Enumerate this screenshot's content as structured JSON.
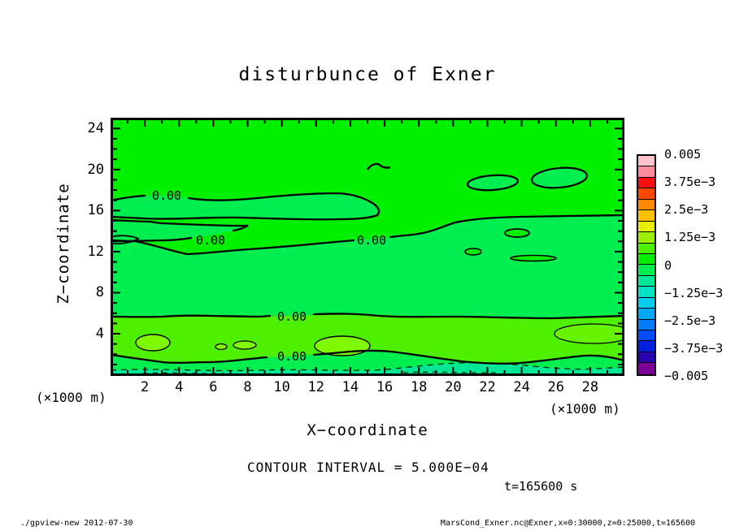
{
  "title": "disturbunce of Exner",
  "axes": {
    "x": {
      "label": "X−coordinate",
      "unit": "(×1000 m)",
      "ticks": [
        2,
        4,
        6,
        8,
        10,
        12,
        14,
        16,
        18,
        20,
        22,
        24,
        26,
        28
      ],
      "min": 0,
      "max": 30
    },
    "y": {
      "label": "Z−coordinate",
      "unit": "(×1000 m)",
      "ticks": [
        4,
        8,
        12,
        16,
        20,
        24
      ],
      "min": 0,
      "max": 25
    }
  },
  "plot": {
    "contour_labels": [
      "0.00",
      "0.00",
      "0.00",
      "0.00",
      "0.00"
    ],
    "colors": {
      "positive_low": "#00f000",
      "negative_low": "#00ee4f",
      "positive_mid": "#4ef000",
      "positive_high": "#80f800",
      "positive_high2": "#68f400",
      "negative_mid": "#00e795",
      "contour_line": "#000000"
    }
  },
  "colorbar": {
    "tick_labels": [
      "0.005",
      "3.75e−3",
      "2.5e−3",
      "1.25e−3",
      "0",
      "−1.25e−3",
      "−2.5e−3",
      "−3.75e−3",
      "−0.005"
    ],
    "colors": [
      "#ffc2ce",
      "#ff8a9a",
      "#ff1010",
      "#ff4800",
      "#ff8800",
      "#ffc000",
      "#e8f000",
      "#9cf000",
      "#4ef000",
      "#00f000",
      "#00ee4f",
      "#00e795",
      "#00e0c4",
      "#00ccec",
      "#00a8f4",
      "#007cfc",
      "#004cff",
      "#0020e0",
      "#2a00b0",
      "#7c0096"
    ]
  },
  "annotations": {
    "contour_interval": "CONTOUR INTERVAL = 5.000E−04",
    "time": "t=165600 s"
  },
  "footer": {
    "left": "./gpview-new  2012-07-30",
    "right": "MarsCond_Exner.nc@Exner,x=0:30000,z=0:25000,t=165600"
  },
  "chart_data": {
    "type": "heatmap",
    "subtype": "filled-contour",
    "title": "disturbunce of Exner",
    "xlabel": "X-coordinate (×1000 m)",
    "ylabel": "Z-coordinate (×1000 m)",
    "xlim": [
      0,
      30
    ],
    "ylim": [
      0,
      25
    ],
    "x_ticks": [
      2,
      4,
      6,
      8,
      10,
      12,
      14,
      16,
      18,
      20,
      22,
      24,
      26,
      28
    ],
    "y_ticks": [
      4,
      8,
      12,
      16,
      20,
      24
    ],
    "contour_interval": 0.0005,
    "contour_interval_label": "CONTOUR INTERVAL = 5.000E-04",
    "time_seconds": 165600,
    "colorbar_levels": [
      0.005,
      0.00375,
      0.0025,
      0.00125,
      0,
      -0.00125,
      -0.0025,
      -0.00375,
      -0.005
    ],
    "legend_position": "right",
    "grid": false,
    "zero_contour_label": "0.00",
    "bands": [
      {
        "z_range": [
          17.5,
          25
        ],
        "value_range": [
          0,
          0.0005
        ],
        "note": "uniform weakly-positive region with small closed negative blobs near z=19-20 (x=16, 21-23, 25-27)"
      },
      {
        "z_range": [
          12,
          17.5
        ],
        "value_range": [
          -0.0005,
          0
        ],
        "note": "thin wavy negative band; 0.00 contours labeled at x=2.5 z=16.5, x=5 z=13, x=15 z=13"
      },
      {
        "z_range": [
          6,
          12
        ],
        "value_range": [
          -0.0005,
          0
        ],
        "note": "near-zero region between 0.00 contours"
      },
      {
        "z_range": [
          1.5,
          6
        ],
        "value_range": [
          0.0005,
          0.0015
        ],
        "note": "positive band, 0.00 contour at top (z=5.8) labeled at x=10.5; inner maxima ellipses near x=2.5, 7, 13.5, 28"
      },
      {
        "z_range": [
          0,
          1.5
        ],
        "value_range": [
          -0.001,
          0
        ],
        "note": "negative strip at surface with dashed negative contours; 0.00 contour labeled at x=10.5 z=1.3"
      }
    ]
  }
}
